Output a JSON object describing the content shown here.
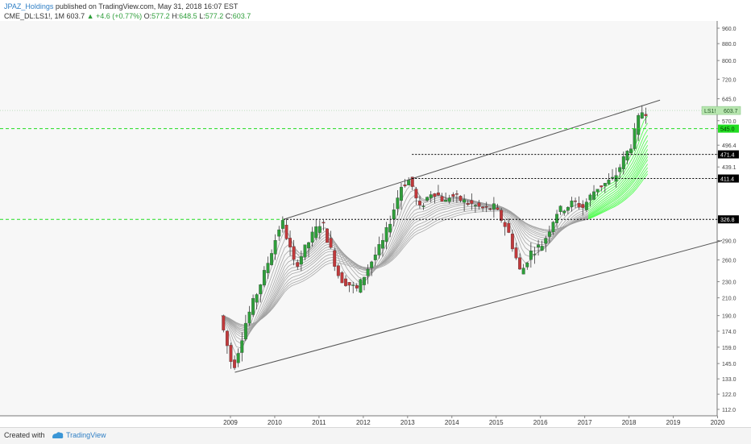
{
  "header": {
    "author": "JPAZ_Holdings",
    "published": "published on TradingView.com, May 31, 2018 16:07 EST"
  },
  "ohlc": {
    "symbol": "CME_DL:LS1!, 1M",
    "last": "603.7",
    "change": "+4.6 (+0.77%)",
    "o_label": "O:",
    "o": "577.2",
    "h_label": "H:",
    "h": "648.5",
    "l_label": "L:",
    "l": "577.2",
    "c_label": "C:",
    "c": "603.7"
  },
  "footer": {
    "created_label": "Created with",
    "brand": "TradingView"
  },
  "colors": {
    "up": "#2e9e3a",
    "down": "#c0393b",
    "ribbon": "#a0a0a0",
    "ribbon_green": "#3cff3c",
    "channel": "#555555",
    "green_level": "#22dd22",
    "black_level": "#000000"
  },
  "chart_data": {
    "type": "candlestick",
    "timeframe": "1M",
    "x_ticks": [
      "2009",
      "2010",
      "2011",
      "2012",
      "2013",
      "2014",
      "2015",
      "2016",
      "2017",
      "2018",
      "2019",
      "2020"
    ],
    "y_scale": "log",
    "y_ticks": [
      "960.0",
      "880.0",
      "800.0",
      "720.0",
      "645.0",
      "570.0",
      "545.0",
      "496.4",
      "471.4",
      "439.1",
      "411.4",
      "326.8",
      "290.0",
      "260.0",
      "230.0",
      "210.0",
      "190.0",
      "174.0",
      "159.0",
      "145.0",
      "133.0",
      "122.0",
      "112.0"
    ],
    "ylim": [
      108,
      1000
    ],
    "last_price_label": "LS1!",
    "last_price": "603.7",
    "levels": [
      {
        "value": "545.0",
        "style": "green-dashed"
      },
      {
        "value": "471.4",
        "style": "black-dotted"
      },
      {
        "value": "411.4",
        "style": "black-dotted"
      },
      {
        "value": "326.8",
        "style": "mixed-dashed"
      }
    ],
    "channel": {
      "upper": [
        [
          2010.2,
          326.8
        ],
        [
          2018.7,
          640
        ]
      ],
      "lower": [
        [
          2009.1,
          138
        ],
        [
          2020.1,
          290
        ]
      ]
    },
    "anchors": [
      [
        2008.8,
        190
      ],
      [
        2009.1,
        140
      ],
      [
        2009.4,
        185
      ],
      [
        2009.8,
        240
      ],
      [
        2010.2,
        326
      ],
      [
        2010.5,
        250
      ],
      [
        2010.9,
        300
      ],
      [
        2011.1,
        325
      ],
      [
        2011.5,
        235
      ],
      [
        2011.9,
        220
      ],
      [
        2012.2,
        255
      ],
      [
        2012.5,
        290
      ],
      [
        2012.9,
        395
      ],
      [
        2013.1,
        410
      ],
      [
        2013.3,
        345
      ],
      [
        2013.6,
        385
      ],
      [
        2013.9,
        360
      ],
      [
        2014.0,
        375
      ],
      [
        2014.4,
        358
      ],
      [
        2014.8,
        345
      ],
      [
        2015.0,
        350
      ],
      [
        2015.3,
        308
      ],
      [
        2015.6,
        240
      ],
      [
        2015.8,
        270
      ],
      [
        2016.1,
        285
      ],
      [
        2016.4,
        340
      ],
      [
        2016.8,
        360
      ],
      [
        2017.0,
        350
      ],
      [
        2017.3,
        390
      ],
      [
        2017.7,
        410
      ],
      [
        2017.9,
        455
      ],
      [
        2018.1,
        500
      ],
      [
        2018.3,
        600
      ]
    ]
  }
}
